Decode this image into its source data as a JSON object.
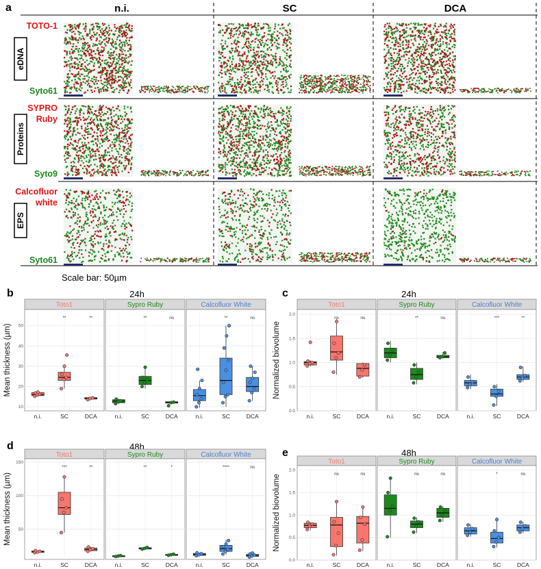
{
  "panel_a": {
    "letter": "a",
    "columns": [
      "n.i.",
      "SC",
      "DCA"
    ],
    "rows": [
      {
        "label": "eDNA",
        "stain_red": [
          "TOTO-1"
        ],
        "stain_green": "Syto61"
      },
      {
        "label": "Proteins",
        "stain_red": [
          "SYPRO",
          "Ruby"
        ],
        "stain_green": "Syto9"
      },
      {
        "label": "EPS",
        "stain_red": [
          "Calcofluor",
          "white"
        ],
        "stain_green": "Syto61"
      }
    ],
    "scale_bar": "Scale bar: 50µm",
    "colors": {
      "red": "#b3121a",
      "green": "#1e8a1e",
      "scalebar": "#1f2f6b"
    }
  },
  "chart_data": [
    {
      "panel": "b",
      "type": "box",
      "title": "24h",
      "ylabel": "Mean thickness (µm)",
      "ylim": [
        8,
        58
      ],
      "yticks": [
        10,
        20,
        30,
        40,
        50
      ],
      "facets": [
        {
          "name": "Toto1",
          "color": "#f8766d",
          "text_color": "#f07a6d",
          "groups": [
            {
              "x": "n.i.",
              "box": [
                15.5,
                16,
                16.5,
                17
              ],
              "whisk": [
                15,
                17.5
              ],
              "points": [
                15.2,
                15.8,
                16.3,
                16.8,
                17.2
              ],
              "sig": ""
            },
            {
              "x": "SC",
              "box": [
                23,
                24.5,
                27
              ],
              "whisk": [
                19,
                30
              ],
              "points": [
                19,
                23.5,
                24.5,
                26,
                30,
                35.5
              ],
              "sig": "**"
            },
            {
              "x": "DCA",
              "box": [
                13.8,
                14.2,
                14.5
              ],
              "whisk": [
                13.5,
                14.6
              ],
              "points": [
                13.5,
                14.1,
                14.4
              ],
              "sig": "**"
            }
          ]
        },
        {
          "name": "Sypro Ruby",
          "color": "#1b8a1b",
          "text_color": "#1b8a1b",
          "groups": [
            {
              "x": "n.i.",
              "box": [
                12,
                12.8,
                13.5
              ],
              "whisk": [
                11.3,
                14
              ],
              "points": [
                11.5,
                12.5,
                13,
                13.8
              ],
              "sig": ""
            },
            {
              "x": "SC",
              "box": [
                21,
                23,
                25
              ],
              "whisk": [
                19,
                29.5
              ],
              "points": [
                20,
                22,
                23.5,
                24.5,
                29.5
              ],
              "sig": "**"
            },
            {
              "x": "DCA",
              "box": [
                11.8,
                12.2,
                12.5
              ],
              "whisk": [
                11.5,
                12.6
              ],
              "points": [
                10.5,
                12,
                12.3
              ],
              "sig": "ns"
            }
          ]
        },
        {
          "name": "Calcofluor White",
          "color": "#4a90e2",
          "text_color": "#4a7fd0",
          "groups": [
            {
              "x": "n.i.",
              "box": [
                13,
                15.5,
                18.5
              ],
              "whisk": [
                9.5,
                23
              ],
              "points": [
                10,
                12,
                14,
                16,
                19,
                23,
                28.5
              ],
              "sig": ""
            },
            {
              "x": "SC",
              "box": [
                16,
                23,
                34
              ],
              "whisk": [
                10,
                50
              ],
              "points": [
                12,
                15,
                16,
                22,
                28,
                33,
                39,
                45,
                50
              ],
              "sig": "**"
            },
            {
              "x": "DCA",
              "box": [
                17.5,
                20,
                24.5
              ],
              "whisk": [
                13,
                30
              ],
              "points": [
                13,
                17,
                19,
                22,
                24,
                27,
                30
              ],
              "sig": "ns"
            }
          ]
        }
      ],
      "x": [
        "n.i.",
        "SC",
        "DCA"
      ]
    },
    {
      "panel": "c",
      "type": "box",
      "title": "24h",
      "ylabel": "Normalized biovolume",
      "ylim": [
        0,
        2.1
      ],
      "yticks": [
        0.0,
        0.5,
        1.0,
        1.5,
        2.0
      ],
      "facets": [
        {
          "name": "Toto1",
          "color": "#f8766d",
          "text_color": "#f07a6d",
          "groups": [
            {
              "x": "n.i.",
              "box": [
                0.95,
                1.0,
                1.02
              ],
              "whisk": [
                0.92,
                1.05
              ],
              "points": [
                0.93,
                0.98,
                1.0,
                1.03,
                1.42
              ],
              "sig": ""
            },
            {
              "x": "SC",
              "box": [
                1.05,
                1.22,
                1.55
              ],
              "whisk": [
                0.75,
                1.9
              ],
              "points": [
                0.8,
                1.1,
                1.2,
                1.4,
                1.85
              ],
              "sig": "ns"
            },
            {
              "x": "DCA",
              "box": [
                0.72,
                0.88,
                0.98
              ],
              "whisk": [
                0.68,
                1.0
              ],
              "points": [
                0.7,
                0.85,
                0.95
              ],
              "sig": "ns"
            }
          ]
        },
        {
          "name": "Sypro Ruby",
          "color": "#1b8a1b",
          "text_color": "#1b8a1b",
          "groups": [
            {
              "x": "n.i.",
              "box": [
                1.1,
                1.2,
                1.3
              ],
              "whisk": [
                1.0,
                1.45
              ],
              "points": [
                1.05,
                1.15,
                1.25,
                1.4
              ],
              "sig": ""
            },
            {
              "x": "SC",
              "box": [
                0.65,
                0.75,
                0.88
              ],
              "whisk": [
                0.55,
                1.0
              ],
              "points": [
                0.58,
                0.7,
                0.8,
                0.95
              ],
              "sig": "**"
            },
            {
              "x": "DCA",
              "box": [
                1.1,
                1.12,
                1.15
              ],
              "whisk": [
                1.08,
                1.22
              ],
              "points": [
                1.1,
                1.13,
                1.2
              ],
              "sig": "ns"
            }
          ]
        },
        {
          "name": "Calcofluor White",
          "color": "#4a90e2",
          "text_color": "#4a7fd0",
          "groups": [
            {
              "x": "n.i.",
              "box": [
                0.52,
                0.58,
                0.63
              ],
              "whisk": [
                0.45,
                0.75
              ],
              "points": [
                0.48,
                0.55,
                0.6,
                0.7
              ],
              "sig": ""
            },
            {
              "x": "SC",
              "box": [
                0.3,
                0.35,
                0.45
              ],
              "whisk": [
                0.1,
                0.55
              ],
              "points": [
                0.12,
                0.3,
                0.4,
                0.5
              ],
              "sig": "***"
            },
            {
              "x": "DCA",
              "box": [
                0.65,
                0.7,
                0.75
              ],
              "whisk": [
                0.6,
                0.92
              ],
              "points": [
                0.62,
                0.68,
                0.73,
                0.9
              ],
              "sig": "**"
            }
          ]
        }
      ],
      "x": [
        "n.i.",
        "SC",
        "DCA"
      ]
    },
    {
      "panel": "d",
      "type": "box",
      "title": "48h",
      "ylabel": "Mean thickness (µm)",
      "ylim": [
        5,
        155
      ],
      "yticks": [
        50,
        100,
        150
      ],
      "facets": [
        {
          "name": "Toto1",
          "color": "#f8766d",
          "text_color": "#f07a6d",
          "groups": [
            {
              "x": "n.i.",
              "box": [
                15.5,
                16.5,
                17.5
              ],
              "whisk": [
                14.5,
                18.5
              ],
              "points": [
                15,
                16,
                17,
                18
              ],
              "sig": ""
            },
            {
              "x": "SC",
              "box": [
                72,
                82,
                105
              ],
              "whisk": [
                45,
                130
              ],
              "points": [
                45,
                75,
                82,
                95,
                128
              ],
              "sig": "***"
            },
            {
              "x": "DCA",
              "box": [
                18,
                20,
                22
              ],
              "whisk": [
                16.5,
                24
              ],
              "points": [
                17,
                19.5,
                21,
                23.5
              ],
              "sig": "**"
            }
          ]
        },
        {
          "name": "Sypro Ruby",
          "color": "#1b8a1b",
          "text_color": "#1b8a1b",
          "groups": [
            {
              "x": "n.i.",
              "box": [
                9.5,
                10,
                10.5
              ],
              "whisk": [
                9,
                11
              ],
              "points": [
                9.3,
                10,
                10.7
              ],
              "sig": ""
            },
            {
              "x": "SC",
              "box": [
                20.5,
                21.5,
                22.5
              ],
              "whisk": [
                20,
                23
              ],
              "points": [
                20.3,
                21.5,
                22.8
              ],
              "sig": "**"
            },
            {
              "x": "DCA",
              "box": [
                11.5,
                12,
                12.5
              ],
              "whisk": [
                11,
                13
              ],
              "points": [
                11.2,
                12,
                12.8
              ],
              "sig": "*"
            }
          ]
        },
        {
          "name": "Calcofluor White",
          "color": "#4a90e2",
          "text_color": "#4a7fd0",
          "groups": [
            {
              "x": "n.i.",
              "box": [
                11,
                12.5,
                14
              ],
              "whisk": [
                10,
                15
              ],
              "points": [
                10.5,
                12,
                13.5,
                14.8
              ],
              "sig": ""
            },
            {
              "x": "SC",
              "box": [
                17,
                21,
                26
              ],
              "whisk": [
                12,
                34
              ],
              "points": [
                13,
                17,
                20,
                24,
                28,
                33
              ],
              "sig": "****"
            },
            {
              "x": "DCA",
              "box": [
                9.5,
                11,
                12.5
              ],
              "whisk": [
                8,
                14.5
              ],
              "points": [
                8.5,
                10,
                11.5,
                13,
                14.5
              ],
              "sig": "ns"
            }
          ]
        }
      ],
      "x": [
        "n.i.",
        "SC",
        "DCA"
      ]
    },
    {
      "panel": "e",
      "type": "box",
      "title": "48h",
      "ylabel": "Normalized biovolume",
      "ylim": [
        0,
        2.1
      ],
      "yticks": [
        0.0,
        0.5,
        1.0,
        1.5,
        2.0
      ],
      "facets": [
        {
          "name": "Toto1",
          "color": "#f8766d",
          "text_color": "#f07a6d",
          "groups": [
            {
              "x": "n.i.",
              "box": [
                0.72,
                0.77,
                0.82
              ],
              "whisk": [
                0.66,
                0.85
              ],
              "points": [
                0.68,
                0.75,
                0.8,
                0.84
              ],
              "sig": ""
            },
            {
              "x": "SC",
              "box": [
                0.3,
                0.78,
                0.95
              ],
              "whisk": [
                0.1,
                1.32
              ],
              "points": [
                0.12,
                0.32,
                0.6,
                0.85,
                1.3
              ],
              "sig": "ns"
            },
            {
              "x": "DCA",
              "box": [
                0.38,
                0.82,
                0.97
              ],
              "whisk": [
                0.2,
                1.2
              ],
              "points": [
                0.22,
                0.45,
                0.8,
                0.95,
                1.18
              ],
              "sig": "ns"
            }
          ]
        },
        {
          "name": "Sypro Ruby",
          "color": "#1b8a1b",
          "text_color": "#1b8a1b",
          "groups": [
            {
              "x": "n.i.",
              "box": [
                1.0,
                1.15,
                1.45
              ],
              "whisk": [
                0.5,
                1.85
              ],
              "points": [
                0.52,
                1.1,
                1.2,
                1.5,
                1.82
              ],
              "sig": ""
            },
            {
              "x": "SC",
              "box": [
                0.72,
                0.8,
                0.87
              ],
              "whisk": [
                0.6,
                0.95
              ],
              "points": [
                0.62,
                0.75,
                0.85,
                0.93
              ],
              "sig": "ns"
            },
            {
              "x": "DCA",
              "box": [
                0.95,
                1.05,
                1.15
              ],
              "whisk": [
                0.85,
                1.2
              ],
              "points": [
                0.88,
                1.0,
                1.1,
                1.18
              ],
              "sig": "ns"
            }
          ]
        },
        {
          "name": "Calcofluor White",
          "color": "#4a90e2",
          "text_color": "#4a7fd0",
          "groups": [
            {
              "x": "n.i.",
              "box": [
                0.58,
                0.65,
                0.72
              ],
              "whisk": [
                0.52,
                0.8
              ],
              "points": [
                0.55,
                0.62,
                0.7,
                0.78
              ],
              "sig": ""
            },
            {
              "x": "SC",
              "box": [
                0.38,
                0.48,
                0.62
              ],
              "whisk": [
                0.28,
                0.95
              ],
              "points": [
                0.3,
                0.4,
                0.5,
                0.65,
                0.9
              ],
              "sig": "*"
            },
            {
              "x": "DCA",
              "box": [
                0.65,
                0.72,
                0.78
              ],
              "whisk": [
                0.6,
                0.85
              ],
              "points": [
                0.62,
                0.7,
                0.76,
                0.84
              ],
              "sig": "ns"
            }
          ]
        }
      ],
      "x": [
        "n.i.",
        "SC",
        "DCA"
      ]
    }
  ]
}
